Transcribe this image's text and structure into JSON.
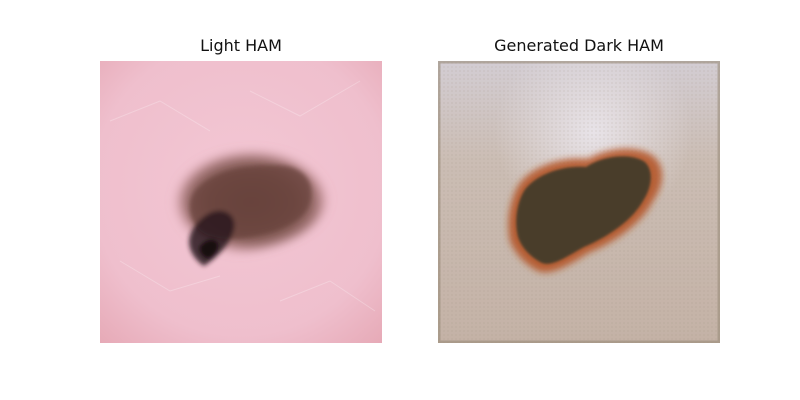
{
  "figure": {
    "panels": [
      {
        "title": "Light HAM",
        "image": "light-skin-lesion-image",
        "colors": {
          "skin": "#efbfcd",
          "skin_edge": "#e6a9b6",
          "lesion_outer": "#8b5e5a",
          "lesion_core": "#5a3b34",
          "lesion_dark_spot": "#2a1a1d"
        }
      },
      {
        "title": "Generated Dark HAM",
        "image": "generated-dark-skin-lesion-image",
        "colors": {
          "skin": "#c8b7ad",
          "skin_light": "#dfd8dc",
          "lesion_rim": "#b3501e",
          "lesion_core": "#4a3c2a",
          "border": "#9a8c7a"
        }
      }
    ]
  }
}
